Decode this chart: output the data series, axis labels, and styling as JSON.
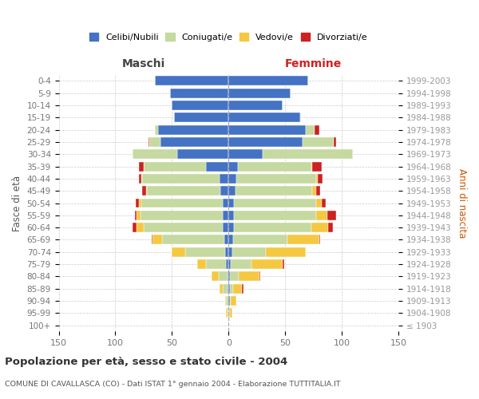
{
  "age_groups": [
    "100+",
    "95-99",
    "90-94",
    "85-89",
    "80-84",
    "75-79",
    "70-74",
    "65-69",
    "60-64",
    "55-59",
    "50-54",
    "45-49",
    "40-44",
    "35-39",
    "30-34",
    "25-29",
    "20-24",
    "15-19",
    "10-14",
    "5-9",
    "0-4"
  ],
  "birth_years": [
    "≤ 1903",
    "1904-1908",
    "1909-1913",
    "1914-1918",
    "1919-1923",
    "1924-1928",
    "1929-1933",
    "1934-1938",
    "1939-1943",
    "1944-1948",
    "1949-1953",
    "1954-1958",
    "1959-1963",
    "1964-1968",
    "1969-1973",
    "1974-1978",
    "1979-1983",
    "1984-1988",
    "1989-1993",
    "1994-1998",
    "1999-2003"
  ],
  "maschi": {
    "celibi": [
      0,
      0,
      0,
      1,
      1,
      2,
      3,
      4,
      5,
      5,
      5,
      7,
      8,
      20,
      45,
      60,
      62,
      48,
      50,
      52,
      65
    ],
    "coniugati": [
      0,
      1,
      2,
      4,
      8,
      18,
      35,
      55,
      70,
      73,
      72,
      65,
      68,
      55,
      40,
      10,
      3,
      0,
      0,
      0,
      0
    ],
    "vedovi": [
      0,
      1,
      1,
      3,
      6,
      8,
      12,
      8,
      6,
      3,
      2,
      1,
      1,
      0,
      0,
      0,
      0,
      0,
      0,
      0,
      0
    ],
    "divorziati": [
      0,
      0,
      0,
      0,
      0,
      0,
      0,
      1,
      4,
      2,
      3,
      3,
      2,
      4,
      0,
      1,
      0,
      0,
      0,
      0,
      0
    ]
  },
  "femmine": {
    "nubili": [
      0,
      0,
      1,
      1,
      1,
      2,
      3,
      4,
      5,
      5,
      5,
      6,
      7,
      8,
      30,
      65,
      68,
      63,
      48,
      55,
      70
    ],
    "coniugate": [
      0,
      1,
      1,
      3,
      8,
      18,
      30,
      48,
      68,
      72,
      72,
      68,
      70,
      65,
      80,
      28,
      8,
      1,
      0,
      0,
      0
    ],
    "vedove": [
      0,
      2,
      5,
      8,
      18,
      28,
      35,
      28,
      15,
      10,
      5,
      3,
      2,
      1,
      0,
      0,
      0,
      0,
      0,
      0,
      0
    ],
    "divorziate": [
      0,
      0,
      0,
      1,
      1,
      1,
      0,
      1,
      4,
      8,
      4,
      4,
      4,
      8,
      0,
      2,
      4,
      0,
      0,
      0,
      0
    ]
  },
  "colors": {
    "celibi": "#4472c4",
    "coniugati": "#c5d9a0",
    "vedovi": "#f5c842",
    "divorziati": "#cc2222"
  },
  "xlim": 150,
  "title": "Popolazione per età, sesso e stato civile - 2004",
  "subtitle": "COMUNE DI CAVALLASCA (CO) - Dati ISTAT 1° gennaio 2004 - Elaborazione TUTTITALIA.IT",
  "header_left": "Maschi",
  "header_right": "Femmine",
  "ylabel_left": "Fasce di età",
  "ylabel_right": "Anni di nascita",
  "legend_labels": [
    "Celibi/Nubili",
    "Coniugati/e",
    "Vedovi/e",
    "Divorziati/e"
  ],
  "bg_color": "#ffffff",
  "grid_color": "#cccccc",
  "tick_color": "#777777"
}
